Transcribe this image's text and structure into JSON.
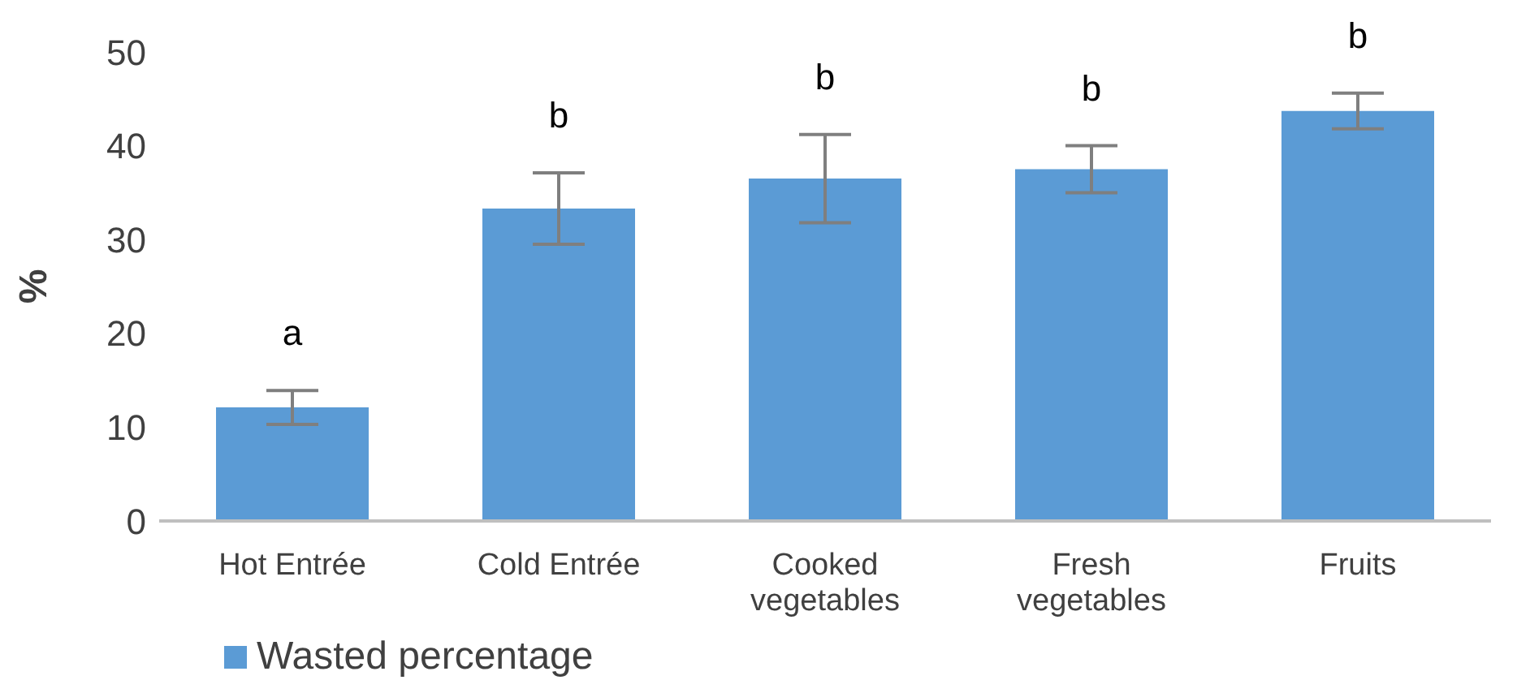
{
  "chart_data": {
    "type": "bar",
    "ylabel": "%",
    "categories": [
      "Hot Entrée",
      "Cold Entrée",
      "Cooked vegetables",
      "Fresh vegetables",
      "Fruits"
    ],
    "series": [
      {
        "name": "Wasted percentage",
        "color": "#5b9bd5",
        "values": [
          12.1,
          33.3,
          36.5,
          37.5,
          43.7
        ],
        "errors": [
          1.8,
          3.8,
          4.7,
          2.5,
          1.9
        ]
      }
    ],
    "ylim": [
      0,
      50
    ],
    "yticks": [
      0,
      10,
      20,
      30,
      40,
      50
    ],
    "grid": false,
    "legend": "bottom left",
    "annotations": [
      "a",
      "b",
      "b",
      "b",
      "b"
    ]
  }
}
